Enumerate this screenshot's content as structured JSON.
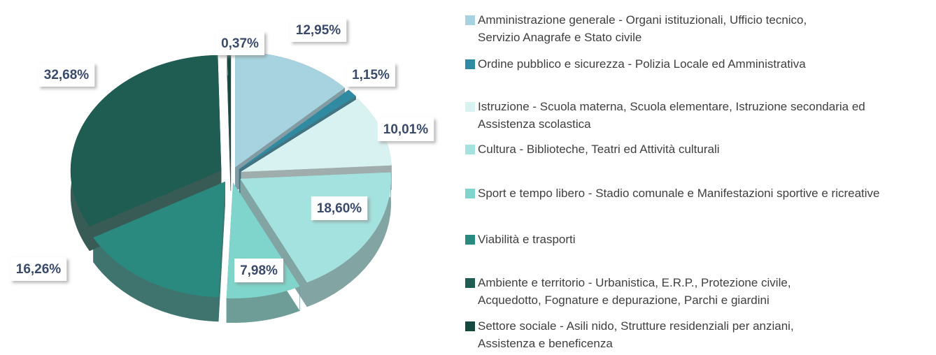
{
  "chart_data": {
    "type": "pie",
    "categories": [
      "Amministrazione generale - Organi istituzionali, Ufficio tecnico, Servizio Anagrafe e Stato civile",
      "Ordine pubblico e sicurezza - Polizia Locale ed Amministrativa",
      "Istruzione - Scuola materna, Scuola elementare, Istruzione secondaria ed Assistenza scolastica",
      "Cultura - Biblioteche, Teatri ed Attività culturali",
      "Sport e tempo libero - Stadio comunale e Manifestazioni sportive e ricreative",
      "Viabilità e trasporti",
      "Ambiente e territorio - Urbanistica, E.R.P., Protezione civile, Acquedotto, Fognature e depurazione, Parchi e giardini",
      "Settore sociale - Asili nido, Strutture residenziali per anziani, Assistenza e beneficenza"
    ],
    "values": [
      12.95,
      1.15,
      10.01,
      18.6,
      7.98,
      16.26,
      32.68,
      0.37
    ],
    "value_labels": [
      "12,95%",
      "1,15%",
      "10,01%",
      "18,60%",
      "7,98%",
      "16,26%",
      "32,68%",
      "0,37%"
    ],
    "colors": [
      "#a6d3df",
      "#2f8aa2",
      "#d8f1f1",
      "#a3e2de",
      "#7fd5cb",
      "#2a8a7f",
      "#1f5c52",
      "#15493f"
    ],
    "legend": "right"
  }
}
